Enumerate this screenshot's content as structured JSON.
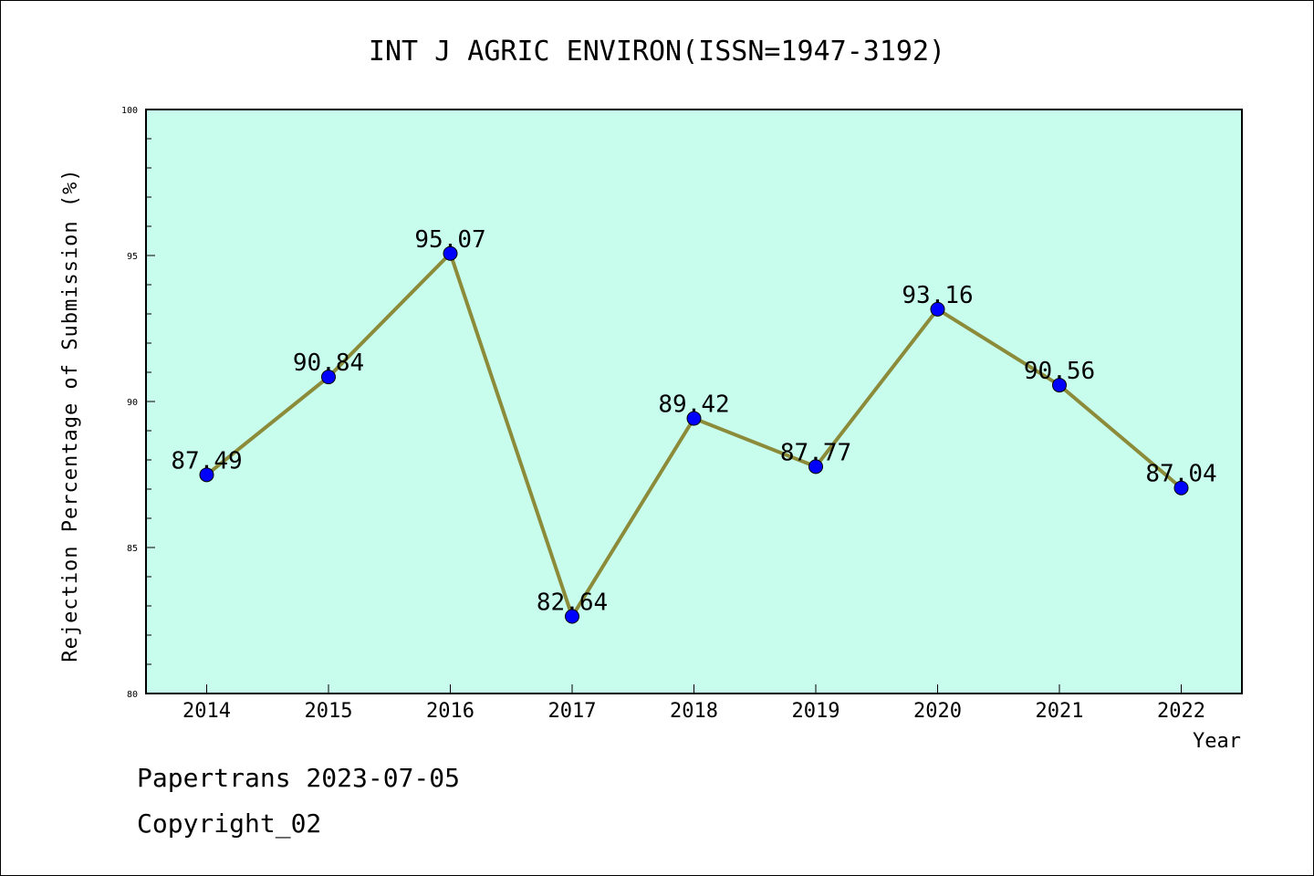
{
  "chart_data": {
    "type": "line",
    "title": "INT J AGRIC ENVIRON(ISSN=1947-3192)",
    "xlabel": "Year",
    "ylabel": "Rejection Percentage of Submission (%)",
    "categories": [
      "2014",
      "2015",
      "2016",
      "2017",
      "2018",
      "2019",
      "2020",
      "2021",
      "2022"
    ],
    "series": [
      {
        "values": [
          87.49,
          90.84,
          95.07,
          82.64,
          89.42,
          87.77,
          93.16,
          90.56,
          87.04
        ],
        "data_labels": [
          "87.49",
          "90.84",
          "95.07",
          "82.64",
          "89.42",
          "87.77",
          "93.16",
          "90.56",
          "87.04"
        ]
      }
    ],
    "ylim": [
      80,
      100
    ],
    "yticks": [
      80,
      85,
      90,
      95,
      100
    ],
    "ytick_labels": [
      "80",
      "85",
      "90",
      "95",
      "100"
    ],
    "grid": false,
    "colors": {
      "plot_background": "#c8fdee",
      "line": "#8b8b3a",
      "marker": "#0000ff"
    }
  },
  "footer": {
    "line1": "Papertrans 2023-07-05",
    "line2": "Copyright_02"
  }
}
